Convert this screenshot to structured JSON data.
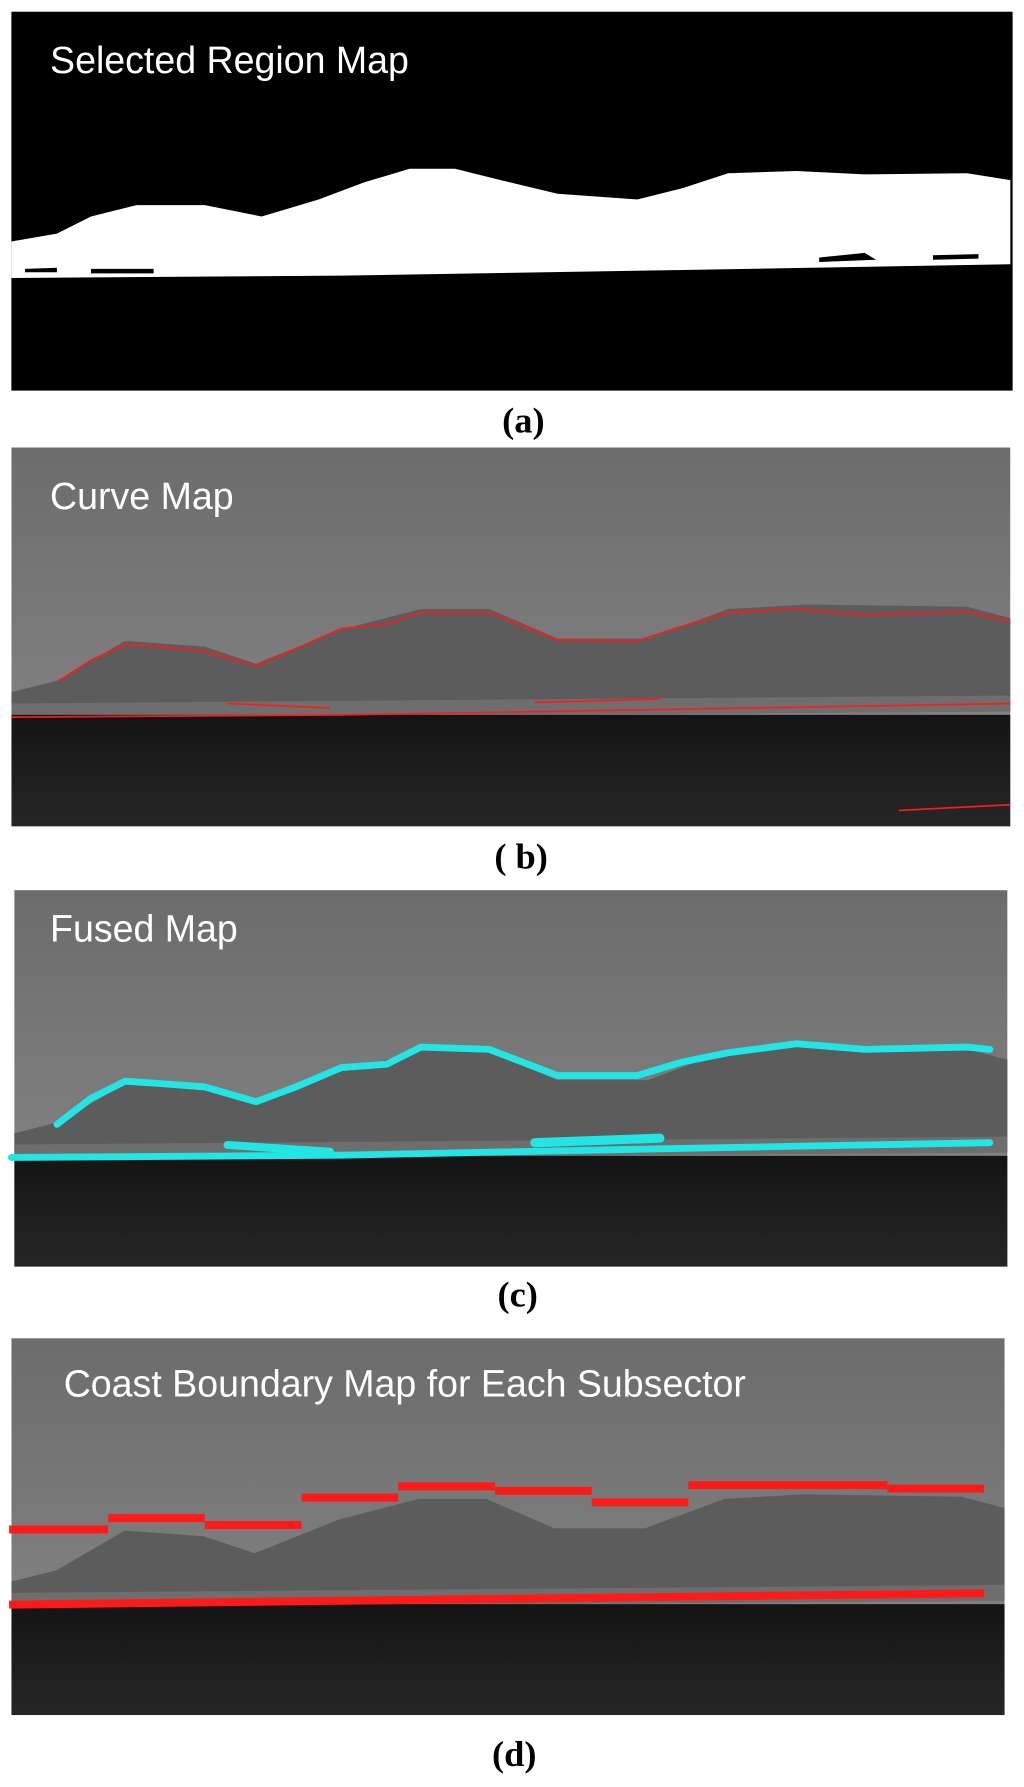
{
  "panels": [
    {
      "title": "Selected Region Map",
      "caption": "(a)"
    },
    {
      "title": "Curve Map",
      "caption": "( b)"
    },
    {
      "title": "Fused Map",
      "caption": "(c)"
    },
    {
      "title": "Coast Boundary Map for Each Subsector",
      "caption": "(d)"
    }
  ]
}
